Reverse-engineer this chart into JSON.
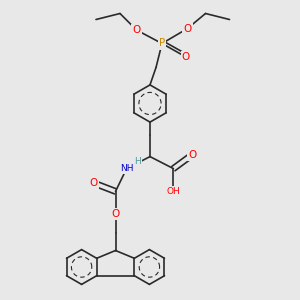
{
  "background_color": "#e8e8e8",
  "bond_color": "#2a2a2a",
  "bond_width": 1.2,
  "atom_colors": {
    "O": "#ff0000",
    "N": "#0000cc",
    "P": "#cc8800",
    "C": "#2a2a2a"
  },
  "font_size_atom": 7.5,
  "font_size_small": 6.5,
  "xlim": [
    0,
    10
  ],
  "ylim": [
    0,
    10
  ]
}
